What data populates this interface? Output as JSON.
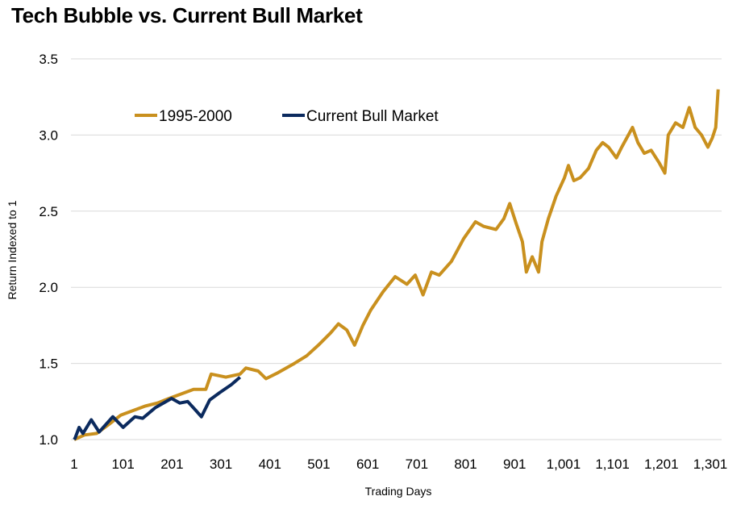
{
  "chart_data": {
    "type": "line",
    "title": "Tech Bubble vs. Current Bull Market",
    "xlabel": "Trading Days",
    "ylabel": "Return Indexed to 1",
    "xlim": [
      1,
      1317
    ],
    "ylim": [
      1.0,
      3.5
    ],
    "x_ticks": [
      1,
      101,
      201,
      301,
      401,
      501,
      601,
      701,
      801,
      901,
      1001,
      1101,
      1201,
      1301
    ],
    "x_tick_labels": [
      "1",
      "101",
      "201",
      "301",
      "401",
      "501",
      "601",
      "701",
      "801",
      "901",
      "1,001",
      "1,101",
      "1,201",
      "1,301"
    ],
    "y_ticks": [
      1.0,
      1.5,
      2.0,
      2.5,
      3.0,
      3.5
    ],
    "y_tick_labels": [
      "1.0",
      "1.5",
      "2.0",
      "2.5",
      "3.0",
      "3.5"
    ],
    "grid": "horizontal",
    "legend": "top-left",
    "series": [
      {
        "name": "1995-2000",
        "color": "#C9901E",
        "x": [
          1,
          22,
          47,
          72,
          96,
          121,
          146,
          171,
          195,
          220,
          245,
          270,
          281,
          311,
          340,
          352,
          377,
          393,
          418,
          451,
          476,
          500,
          525,
          541,
          558,
          574,
          591,
          607,
          632,
          657,
          681,
          698,
          714,
          731,
          747,
          772,
          797,
          821,
          838,
          863,
          879,
          891,
          904,
          917,
          925,
          937,
          950,
          957,
          970,
          986,
          1003,
          1011,
          1022,
          1035,
          1052,
          1068,
          1081,
          1093,
          1109,
          1120,
          1142,
          1153,
          1166,
          1180,
          1196,
          1208,
          1215,
          1230,
          1245,
          1258,
          1270,
          1283,
          1296,
          1305,
          1312,
          1317
        ],
        "y": [
          1.0,
          1.03,
          1.04,
          1.1,
          1.16,
          1.19,
          1.22,
          1.24,
          1.27,
          1.3,
          1.33,
          1.33,
          1.43,
          1.41,
          1.43,
          1.47,
          1.45,
          1.4,
          1.44,
          1.5,
          1.55,
          1.62,
          1.7,
          1.76,
          1.72,
          1.62,
          1.75,
          1.85,
          1.97,
          2.07,
          2.02,
          2.08,
          1.95,
          2.1,
          2.08,
          2.17,
          2.32,
          2.43,
          2.4,
          2.38,
          2.45,
          2.55,
          2.42,
          2.3,
          2.1,
          2.2,
          2.1,
          2.3,
          2.45,
          2.6,
          2.72,
          2.8,
          2.7,
          2.72,
          2.78,
          2.9,
          2.95,
          2.92,
          2.85,
          2.92,
          3.05,
          2.95,
          2.88,
          2.9,
          2.82,
          2.75,
          3.0,
          3.08,
          3.05,
          3.18,
          3.05,
          3.0,
          2.92,
          2.98,
          3.05,
          3.3
        ]
      },
      {
        "name": "Current Bull Market",
        "color": "#0B2A5E",
        "x": [
          1,
          3,
          11,
          19,
          36,
          52,
          80,
          101,
          125,
          141,
          167,
          200,
          217,
          233,
          250,
          261,
          278,
          299,
          322,
          340
        ],
        "y": [
          1.0,
          1.01,
          1.08,
          1.04,
          1.13,
          1.05,
          1.15,
          1.08,
          1.15,
          1.14,
          1.21,
          1.27,
          1.24,
          1.25,
          1.19,
          1.15,
          1.26,
          1.31,
          1.36,
          1.41
        ]
      }
    ]
  }
}
